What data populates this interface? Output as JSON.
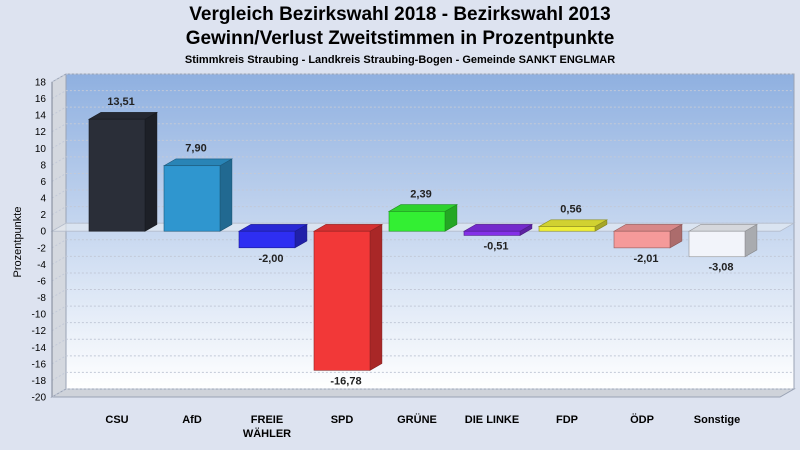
{
  "header": {
    "title_line1": "Vergleich Bezirkswahl 2018 - Bezirkswahl 2013",
    "title_line2": "Gewinn/Verlust Zweitstimmen in Prozentpunkte",
    "subtitle": "Stimmkreis Straubing - Landkreis Straubing-Bogen - Gemeinde SANKT ENGLMAR"
  },
  "chart_data": {
    "type": "bar",
    "title": "Vergleich Bezirkswahl 2018 - Bezirkswahl 2013",
    "subtitle": "Gewinn/Verlust Zweitstimmen in Prozentpunkte",
    "ylabel": "Prozentpunkte",
    "xlabel": "",
    "ylim": [
      -20,
      18
    ],
    "yticks": [
      18,
      16,
      14,
      12,
      10,
      8,
      6,
      4,
      2,
      0,
      -2,
      -4,
      -6,
      -8,
      -10,
      -12,
      -14,
      -16,
      -18,
      -20
    ],
    "grid": true,
    "categories": [
      {
        "lines": [
          "CSU"
        ]
      },
      {
        "lines": [
          "AfD"
        ]
      },
      {
        "lines": [
          "FREIE",
          "WÄHLER"
        ]
      },
      {
        "lines": [
          "SPD"
        ]
      },
      {
        "lines": [
          "GRÜNE"
        ]
      },
      {
        "lines": [
          "DIE LINKE"
        ]
      },
      {
        "lines": [
          "FDP"
        ]
      },
      {
        "lines": [
          "ÖDP"
        ]
      },
      {
        "lines": [
          "Sonstige"
        ]
      }
    ],
    "values": [
      13.51,
      7.9,
      -2.0,
      -16.78,
      2.39,
      -0.51,
      0.56,
      -2.01,
      -3.08
    ],
    "value_labels": [
      "13,51",
      "7,90",
      "-2,00",
      "-16,78",
      "2,39",
      "-0,51",
      "0,56",
      "-2,01",
      "-3,08"
    ],
    "colors": [
      "#2a2e38",
      "#2f96cf",
      "#2e2ef2",
      "#f23838",
      "#33ef33",
      "#8430e8",
      "#eeee38",
      "#f59a9a",
      "#f2f4fa"
    ]
  }
}
